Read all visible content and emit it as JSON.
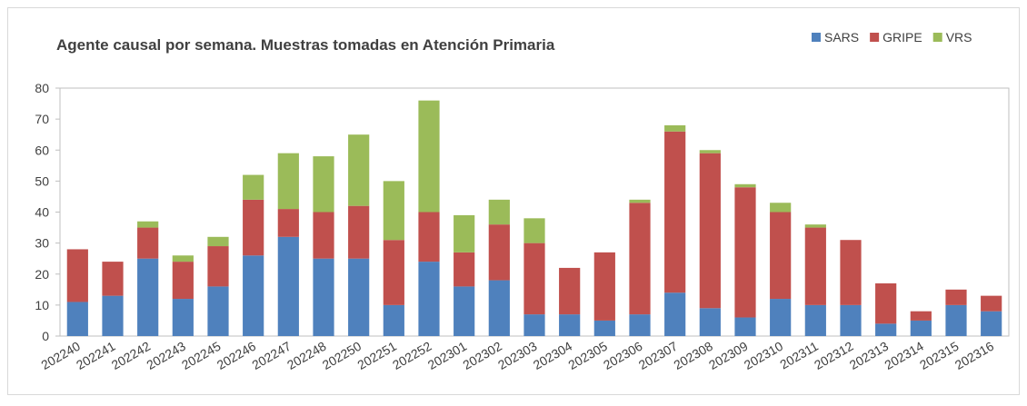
{
  "chart_data": {
    "type": "bar",
    "stacked": true,
    "title": "Agente causal por semana. Muestras tomadas en Atención Primaria",
    "categories": [
      "202240",
      "202241",
      "202242",
      "202243",
      "202245",
      "202246",
      "202247",
      "202248",
      "202250",
      "202251",
      "202252",
      "202301",
      "202302",
      "202303",
      "202304",
      "202305",
      "202306",
      "202307",
      "202308",
      "202309",
      "202310",
      "202311",
      "202312",
      "202313",
      "202314",
      "202315",
      "202316"
    ],
    "series": [
      {
        "name": "SARS",
        "color": "#4f81bd",
        "values": [
          11,
          13,
          25,
          12,
          16,
          26,
          32,
          25,
          25,
          10,
          24,
          16,
          18,
          7,
          7,
          5,
          7,
          14,
          9,
          6,
          12,
          10,
          10,
          4,
          5,
          10,
          8
        ]
      },
      {
        "name": "GRIPE",
        "color": "#c0504d",
        "values": [
          17,
          11,
          10,
          12,
          13,
          18,
          9,
          15,
          17,
          21,
          16,
          11,
          18,
          23,
          15,
          22,
          36,
          52,
          50,
          42,
          28,
          25,
          21,
          13,
          3,
          5,
          5
        ]
      },
      {
        "name": "VRS",
        "color": "#9bbb59",
        "values": [
          0,
          0,
          2,
          2,
          3,
          8,
          18,
          18,
          23,
          19,
          36,
          12,
          8,
          8,
          0,
          0,
          1,
          2,
          1,
          1,
          3,
          1,
          0,
          0,
          0,
          0,
          0
        ]
      }
    ],
    "ylim": [
      0,
      80
    ],
    "yticks": [
      0,
      10,
      20,
      30,
      40,
      50,
      60,
      70,
      80
    ],
    "grid": false,
    "legend": "top-right"
  }
}
